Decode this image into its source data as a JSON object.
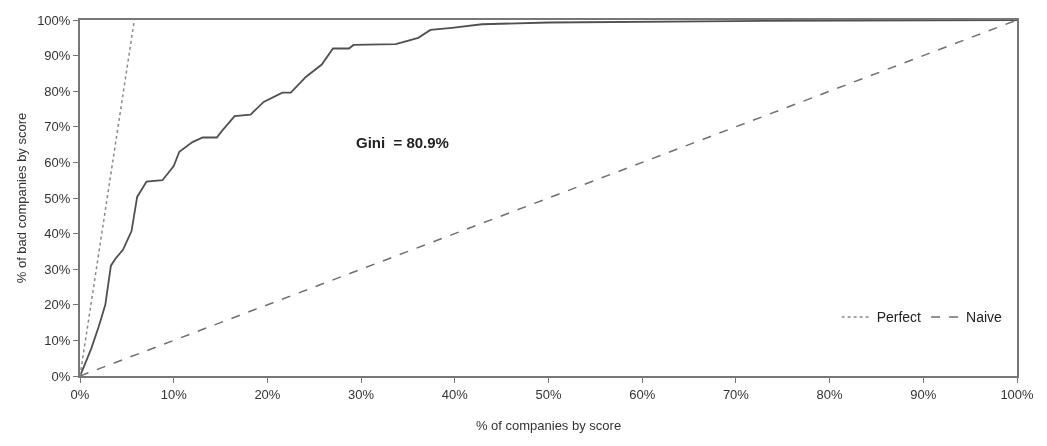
{
  "chart_data": {
    "type": "line",
    "xlabel": "% of companies by score",
    "ylabel": "% of bad companies by score",
    "annotations": [
      "Gini  = 80.9%"
    ],
    "series": [
      {
        "color": "#505050",
        "line_style": "solid",
        "x": [
          0,
          0.1,
          1.2,
          2.0,
          2.7,
          3.3,
          3.8,
          4.6,
          5.5,
          6.1,
          7.1,
          8.8,
          10.0,
          10.6,
          12.0,
          13.1,
          14.6,
          15.2,
          16.5,
          18.2,
          19.6,
          21.6,
          22.5,
          24.1,
          25.8,
          27.0,
          28.7,
          29.2,
          33.7,
          36.1,
          37.4,
          39.7,
          42.9,
          50,
          70,
          100
        ],
        "values": [
          0,
          0.6,
          7.7,
          13.9,
          20,
          31,
          33,
          35.5,
          40.7,
          50.3,
          54.6,
          55,
          59,
          63,
          65.7,
          67,
          67,
          69,
          73,
          73.4,
          77,
          79.6,
          79.6,
          84,
          87.5,
          92,
          92,
          93,
          93.2,
          95,
          97.2,
          97.8,
          98.8,
          99.3,
          99.7,
          100
        ]
      },
      {
        "name": "Perfect",
        "color": "#8a8a8a",
        "line_style": "dotted",
        "x": [
          0,
          5.8
        ],
        "values": [
          0,
          100
        ]
      },
      {
        "name": "Naive",
        "color": "#707070",
        "line_style": "dashed",
        "x": [
          0,
          100
        ],
        "values": [
          0,
          100
        ]
      }
    ],
    "xlim": [
      0,
      100
    ],
    "ylim": [
      0,
      100
    ],
    "xticks": [
      {
        "value": 0,
        "label": "0%"
      },
      {
        "value": 10,
        "label": "10%"
      },
      {
        "value": 20,
        "label": "20%"
      },
      {
        "value": 30,
        "label": "30%"
      },
      {
        "value": 40,
        "label": "40%"
      },
      {
        "value": 50,
        "label": "50%"
      },
      {
        "value": 60,
        "label": "60%"
      },
      {
        "value": 70,
        "label": "70%"
      },
      {
        "value": 80,
        "label": "80%"
      },
      {
        "value": 90,
        "label": "90%"
      },
      {
        "value": 100,
        "label": "100%"
      }
    ],
    "yticks": [
      {
        "value": 0,
        "label": "0%"
      },
      {
        "value": 10,
        "label": "10%"
      },
      {
        "value": 20,
        "label": "20%"
      },
      {
        "value": 30,
        "label": "30%"
      },
      {
        "value": 40,
        "label": "40%"
      },
      {
        "value": 50,
        "label": "50%"
      },
      {
        "value": 60,
        "label": "60%"
      },
      {
        "value": 70,
        "label": "70%"
      },
      {
        "value": 80,
        "label": "80%"
      },
      {
        "value": 90,
        "label": "90%"
      },
      {
        "value": 100,
        "label": "100%"
      }
    ],
    "grid": false,
    "legend": "bottom right",
    "marker": "none"
  }
}
